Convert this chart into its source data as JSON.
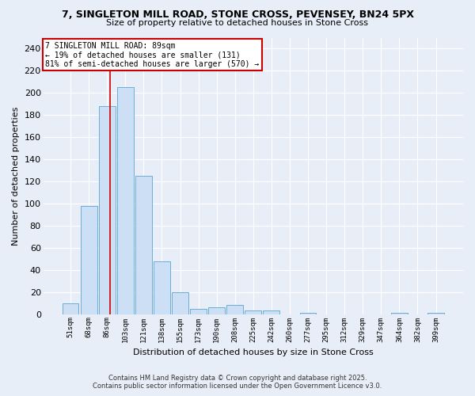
{
  "title": "7, SINGLETON MILL ROAD, STONE CROSS, PEVENSEY, BN24 5PX",
  "subtitle": "Size of property relative to detached houses in Stone Cross",
  "xlabel": "Distribution of detached houses by size in Stone Cross",
  "ylabel": "Number of detached properties",
  "bar_labels": [
    "51sqm",
    "68sqm",
    "86sqm",
    "103sqm",
    "121sqm",
    "138sqm",
    "155sqm",
    "173sqm",
    "190sqm",
    "208sqm",
    "225sqm",
    "242sqm",
    "260sqm",
    "277sqm",
    "295sqm",
    "312sqm",
    "329sqm",
    "347sqm",
    "364sqm",
    "382sqm",
    "399sqm"
  ],
  "bar_values": [
    10,
    98,
    188,
    205,
    125,
    48,
    20,
    5,
    6,
    8,
    3,
    3,
    0,
    1,
    0,
    0,
    0,
    0,
    1,
    0,
    1
  ],
  "bar_color": "#ccdff5",
  "bar_edge_color": "#6aaed6",
  "background_color": "#e8eef8",
  "grid_color": "#ffffff",
  "red_line_x": 2.18,
  "annotation_text": "7 SINGLETON MILL ROAD: 89sqm\n← 19% of detached houses are smaller (131)\n81% of semi-detached houses are larger (570) →",
  "annotation_box_color": "#ffffff",
  "annotation_box_edge": "#cc0000",
  "footer_line1": "Contains HM Land Registry data © Crown copyright and database right 2025.",
  "footer_line2": "Contains public sector information licensed under the Open Government Licence v3.0.",
  "ylim": [
    0,
    250
  ],
  "yticks": [
    0,
    20,
    40,
    60,
    80,
    100,
    120,
    140,
    160,
    180,
    200,
    220,
    240
  ]
}
